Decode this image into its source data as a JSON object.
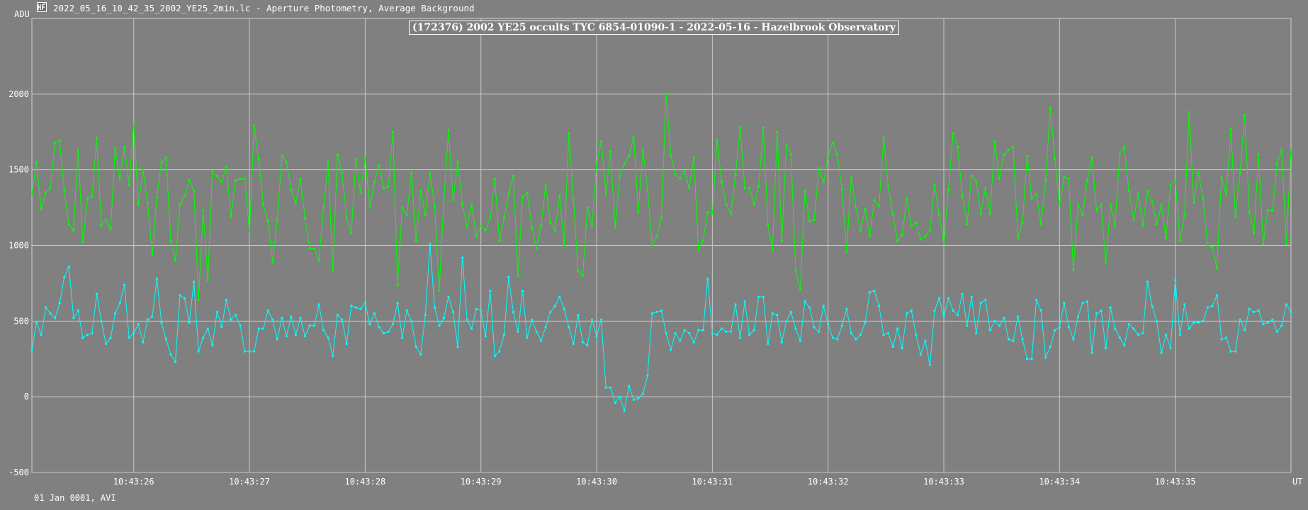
{
  "window": {
    "title": "2022_05_16_10_42_35_2002_YE25_2min.lc - Aperture Photometry, Average Background",
    "icon": "lightcurve-app-icon"
  },
  "footer": {
    "text": "01 Jan 0001, AVI"
  },
  "colors": {
    "background": "#808080",
    "grid": "#c8c8c8",
    "target": "#00ffff",
    "comparison": "#00ff00",
    "text": "#ffffff"
  },
  "chart_data": {
    "type": "line",
    "title": "(172376) 2002 YE25 occults TYC 6854-01090-1 - 2022-05-16 - Hazelbrook Observatory",
    "ylabel": "ADU",
    "xlabel": "UT",
    "ylim": [
      -500,
      2500
    ],
    "yticks": [
      -500,
      0,
      500,
      1000,
      1500,
      2000
    ],
    "x_tick_labels": [
      "10:43:26",
      "10:43:27",
      "10:43:28",
      "10:43:29",
      "10:43:30",
      "10:43:31",
      "10:43:32",
      "10:43:33",
      "10:43:34",
      "10:43:35"
    ],
    "x_tick_index": [
      22,
      47,
      72,
      97,
      122,
      147,
      172,
      197,
      222,
      247
    ],
    "x_range_index": [
      0,
      272
    ],
    "grid": true,
    "series": [
      {
        "color": "#00ffff",
        "values": [
          310,
          490,
          410,
          590,
          550,
          520,
          620,
          790,
          860,
          520,
          570,
          390,
          410,
          420,
          680,
          500,
          350,
          390,
          550,
          620,
          740,
          390,
          420,
          480,
          360,
          510,
          530,
          780,
          490,
          380,
          280,
          230,
          670,
          650,
          490,
          760,
          300,
          390,
          450,
          340,
          560,
          460,
          640,
          510,
          540,
          470,
          300,
          300,
          300,
          450,
          450,
          570,
          510,
          380,
          520,
          400,
          530,
          410,
          520,
          400,
          470,
          470,
          610,
          440,
          390,
          270,
          540,
          510,
          350,
          600,
          590,
          580,
          620,
          480,
          550,
          460,
          420,
          430,
          480,
          620,
          390,
          570,
          500,
          330,
          280,
          540,
          1010,
          590,
          470,
          520,
          660,
          560,
          330,
          920,
          510,
          450,
          580,
          570,
          400,
          700,
          270,
          300,
          410,
          790,
          560,
          430,
          700,
          390,
          510,
          430,
          370,
          460,
          560,
          600,
          660,
          580,
          460,
          350,
          540,
          360,
          340,
          510,
          400,
          510,
          60,
          60,
          -40,
          0,
          -90,
          70,
          -20,
          -10,
          20,
          140,
          550,
          560,
          570,
          420,
          310,
          420,
          370,
          440,
          420,
          360,
          440,
          440,
          780,
          420,
          410,
          450,
          430,
          430,
          610,
          390,
          630,
          410,
          440,
          660,
          660,
          350,
          550,
          540,
          360,
          500,
          560,
          450,
          370,
          630,
          590,
          460,
          430,
          600,
          480,
          390,
          380,
          470,
          580,
          420,
          380,
          410,
          490,
          690,
          700,
          600,
          410,
          420,
          330,
          450,
          320,
          550,
          570,
          410,
          280,
          370,
          210,
          570,
          650,
          530,
          650,
          570,
          540,
          680,
          470,
          660,
          420,
          620,
          640,
          440,
          500,
          470,
          520,
          380,
          370,
          530,
          380,
          250,
          250,
          640,
          570,
          260,
          330,
          440,
          460,
          620,
          460,
          380,
          530,
          620,
          630,
          290,
          550,
          570,
          320,
          590,
          450,
          390,
          340,
          480,
          450,
          410,
          420,
          760,
          600,
          500,
          290,
          410,
          320,
          770,
          410,
          610,
          450,
          490,
          490,
          500,
          590,
          600,
          670,
          380,
          390,
          300,
          300,
          510,
          440,
          580,
          560,
          570,
          480,
          490,
          510,
          430,
          470,
          610,
          560
        ]
      },
      {
        "color": "#00ff00",
        "values": [
          1340,
          1550,
          1240,
          1350,
          1380,
          1680,
          1690,
          1360,
          1140,
          1100,
          1630,
          1020,
          1310,
          1320,
          1710,
          1130,
          1170,
          1110,
          1640,
          1440,
          1650,
          1400,
          1810,
          1270,
          1500,
          1280,
          940,
          1320,
          1550,
          1580,
          1030,
          900,
          1270,
          1330,
          1430,
          1360,
          640,
          1230,
          770,
          1490,
          1460,
          1420,
          1520,
          1190,
          1430,
          1440,
          1440,
          1080,
          1790,
          1570,
          1270,
          1160,
          890,
          1170,
          1590,
          1550,
          1370,
          1280,
          1440,
          1180,
          980,
          980,
          900,
          1250,
          1550,
          830,
          1600,
          1480,
          1180,
          1080,
          1570,
          1350,
          1580,
          1250,
          1420,
          1530,
          1380,
          1390,
          1750,
          740,
          1250,
          1200,
          1480,
          1030,
          1360,
          1200,
          1480,
          1260,
          700,
          1300,
          1760,
          1300,
          1550,
          1270,
          1120,
          1270,
          1060,
          1130,
          1100,
          1180,
          1440,
          1030,
          1180,
          1340,
          1460,
          800,
          1320,
          1350,
          1120,
          980,
          1130,
          1400,
          1150,
          1100,
          1330,
          1000,
          1740,
          1300,
          830,
          800,
          1250,
          1130,
          1540,
          1690,
          1340,
          1620,
          1120,
          1460,
          1540,
          1590,
          1720,
          1220,
          1630,
          1370,
          1000,
          1060,
          1180,
          2000,
          1600,
          1470,
          1440,
          1490,
          1380,
          1580,
          970,
          1030,
          1220,
          1210,
          1700,
          1420,
          1270,
          1210,
          1470,
          1780,
          1380,
          1380,
          1270,
          1390,
          1780,
          1140,
          970,
          1750,
          1030,
          1660,
          1600,
          830,
          710,
          1360,
          1160,
          1170,
          1510,
          1420,
          1590,
          1680,
          1600,
          1370,
          960,
          1450,
          1250,
          1100,
          1240,
          1060,
          1300,
          1260,
          1710,
          1390,
          1200,
          1030,
          1070,
          1310,
          1130,
          1150,
          1040,
          1060,
          1100,
          1400,
          1200,
          1010,
          1370,
          1740,
          1650,
          1330,
          1140,
          1460,
          1420,
          1210,
          1380,
          1210,
          1690,
          1440,
          1600,
          1630,
          1650,
          1050,
          1150,
          1590,
          1310,
          1340,
          1140,
          1430,
          1910,
          1570,
          1270,
          1450,
          1440,
          840,
          1270,
          1200,
          1430,
          1580,
          1230,
          1270,
          880,
          1270,
          1130,
          1610,
          1650,
          1360,
          1170,
          1340,
          1130,
          1360,
          1290,
          1140,
          1270,
          1050,
          1400,
          1430,
          1030,
          1200,
          1880,
          1280,
          1480,
          1310,
          1000,
          990,
          850,
          1450,
          1340,
          1770,
          1190,
          1480,
          1860,
          1220,
          1080,
          1600,
          1010,
          1230,
          1230,
          1540,
          1630,
          1010,
          1630
        ]
      }
    ]
  }
}
